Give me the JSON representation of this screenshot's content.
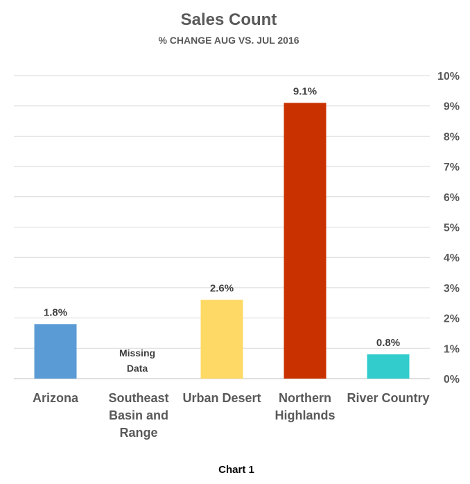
{
  "chart_data": {
    "type": "bar",
    "title": "Sales Count",
    "subtitle": "% CHANGE AUG VS. JUL 2016",
    "categories": [
      [
        "Arizona"
      ],
      [
        "Southeast",
        "Basin and",
        "Range"
      ],
      [
        "Urban Desert"
      ],
      [
        "Northern",
        "Highlands"
      ],
      [
        "River Country"
      ]
    ],
    "values": [
      1.8,
      null,
      2.6,
      9.1,
      0.8
    ],
    "data_labels": [
      "1.8%",
      "",
      "2.6%",
      "9.1%",
      "0.8%"
    ],
    "missing_note": [
      "Missing",
      "Data"
    ],
    "colors": [
      "#5b9bd5",
      "#5b9bd5",
      "#ffd966",
      "#c93200",
      "#33cccc"
    ],
    "ylim": [
      0,
      10
    ],
    "y_axis_position": "right",
    "y_ticks": [
      "0%",
      "1%",
      "2%",
      "3%",
      "4%",
      "5%",
      "6%",
      "7%",
      "8%",
      "9%",
      "10%"
    ],
    "grid": true,
    "legend": "none"
  },
  "caption": "Chart 1"
}
